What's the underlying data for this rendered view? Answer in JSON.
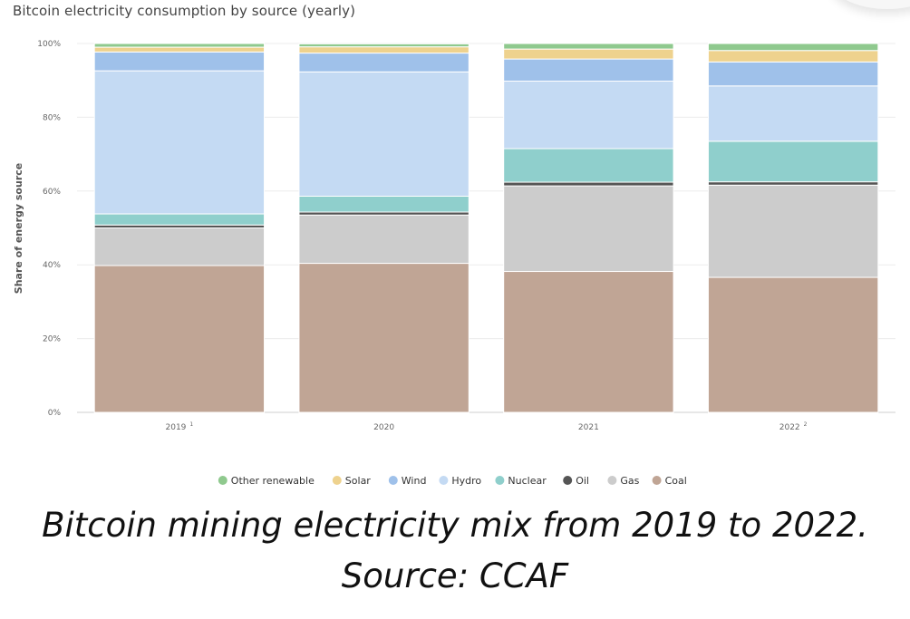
{
  "chart_data": {
    "type": "bar",
    "stacked": true,
    "title": "Bitcoin electricity consumption by source (yearly)",
    "ylabel": "Share of energy source",
    "xlabel": "",
    "ylim": [
      0,
      100
    ],
    "y_ticks": [
      "0%",
      "20%",
      "40%",
      "60%",
      "80%",
      "100%"
    ],
    "categories": [
      "2019",
      "2020",
      "2021",
      "2022"
    ],
    "category_footnotes": [
      "1",
      "",
      "",
      "2"
    ],
    "grid": true,
    "legend": "bottom",
    "series": [
      {
        "name": "Coal",
        "color": "#c0a595",
        "values": [
          39.8,
          40.4,
          38.2,
          36.6
        ]
      },
      {
        "name": "Gas",
        "color": "#cccccc",
        "values": [
          10.2,
          13.1,
          23.2,
          25.0
        ]
      },
      {
        "name": "Oil",
        "color": "#555555",
        "values": [
          0.8,
          0.8,
          1.0,
          0.9
        ]
      },
      {
        "name": "Nuclear",
        "color": "#8fcfcc",
        "values": [
          3.0,
          4.3,
          9.1,
          11.0
        ]
      },
      {
        "name": "Hydro",
        "color": "#c4daf3",
        "values": [
          38.8,
          33.7,
          18.3,
          15.0
        ]
      },
      {
        "name": "Wind",
        "color": "#9fc1ea",
        "values": [
          5.1,
          5.1,
          6.0,
          6.5
        ]
      },
      {
        "name": "Solar",
        "color": "#eed28e",
        "values": [
          1.3,
          1.7,
          2.7,
          3.1
        ]
      },
      {
        "name": "Other renewable",
        "color": "#8fc98e",
        "values": [
          1.0,
          0.8,
          1.5,
          1.9
        ]
      }
    ],
    "legend_order": [
      "Other renewable",
      "Solar",
      "Wind",
      "Hydro",
      "Nuclear",
      "Oil",
      "Gas",
      "Coal"
    ]
  },
  "caption": {
    "line1": "Bitcoin mining electricity mix from 2019 to 2022.",
    "line2": "Source: CCAF"
  }
}
